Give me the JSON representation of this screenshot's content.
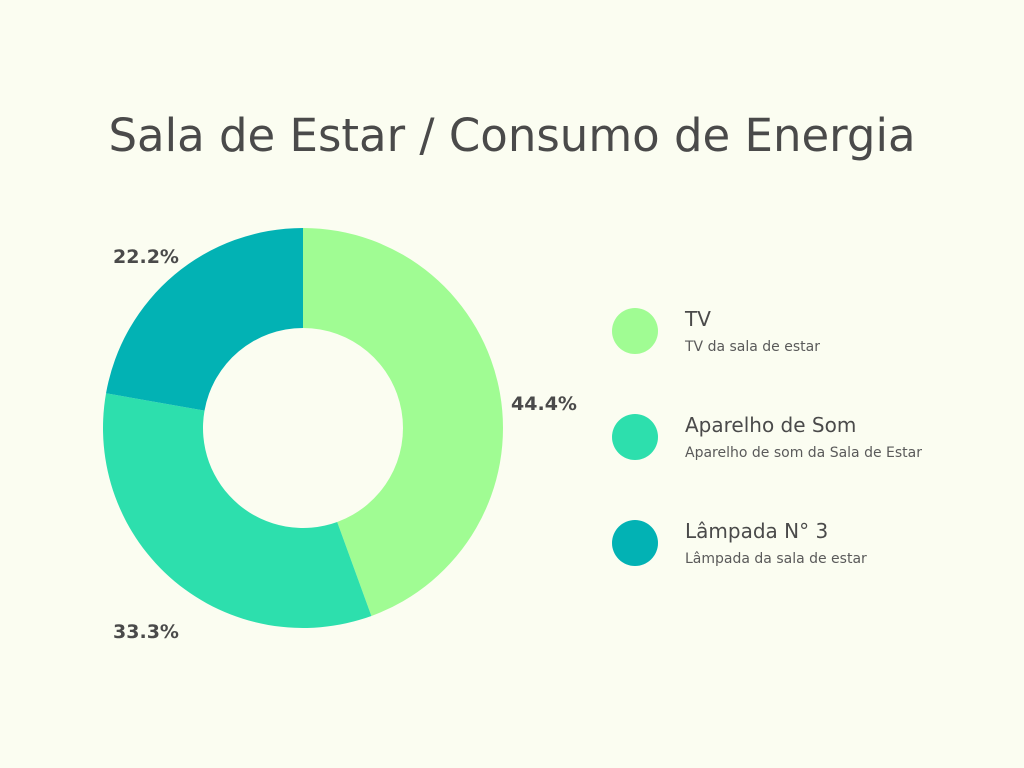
{
  "chart_data": {
    "type": "pie",
    "title": "Sala de Estar / Consumo de Energia",
    "donut": true,
    "legend_position": "right",
    "series": [
      {
        "name": "TV",
        "description": "TV da sala de estar",
        "value": 44.4,
        "label": "44.4%",
        "color": "#a0fc93"
      },
      {
        "name": "Aparelho de Som",
        "description": "Aparelho de som da Sala de Estar",
        "value": 33.3,
        "label": "33.3%",
        "color": "#2ddfad"
      },
      {
        "name": "Lâmpada N° 3",
        "description": "Lâmpada da sala de estar",
        "value": 22.2,
        "label": "22.2%",
        "color": "#02b2b4"
      }
    ]
  }
}
